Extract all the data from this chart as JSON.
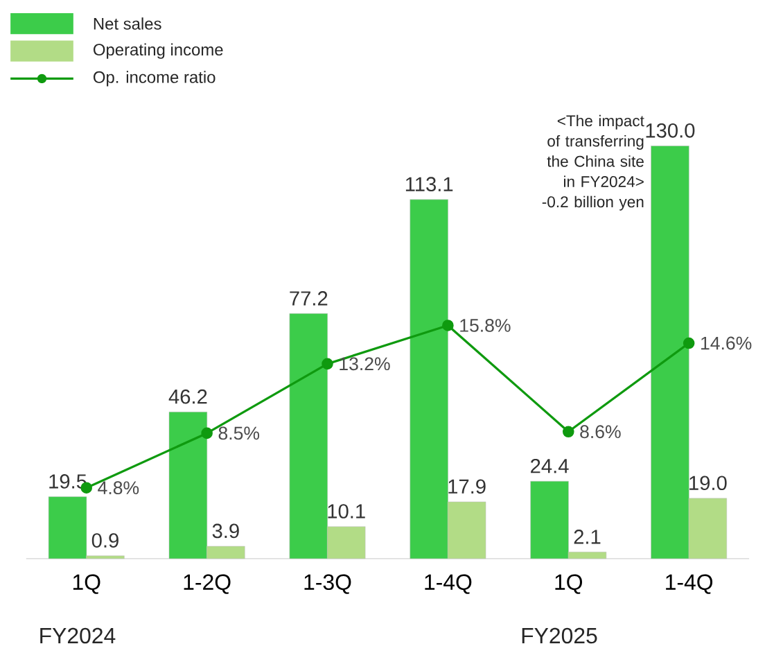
{
  "chart_data": {
    "type": "bar",
    "categories": [
      "1Q",
      "1-2Q",
      "1-3Q",
      "1-4Q",
      "1Q",
      "1-4Q"
    ],
    "series": [
      {
        "name": "Net sales",
        "color": "#3ccc4a",
        "values": [
          19.5,
          46.2,
          77.2,
          113.1,
          24.4,
          130.0
        ],
        "value_labels": [
          "19.5",
          "46.2",
          "77.2",
          "113.1",
          "24.4",
          "130.0"
        ]
      },
      {
        "name": "Operating income",
        "color": "#b2dc86",
        "values": [
          0.9,
          3.9,
          10.1,
          17.9,
          2.1,
          19.0
        ],
        "value_labels": [
          "0.9",
          "3.9",
          "10.1",
          "17.9",
          "2.1",
          "19.0"
        ]
      },
      {
        "name": "Op. income ratio",
        "type": "line",
        "axis": "y2",
        "color": "#0f9a0f",
        "marker": "circle",
        "line_style": "solid",
        "values": [
          4.8,
          8.5,
          13.2,
          15.8,
          8.6,
          14.6
        ],
        "value_labels": [
          "4.8%",
          "8.5%",
          "13.2%",
          "15.8%",
          "8.6%",
          "14.6%"
        ]
      }
    ],
    "annotations": [
      "FY2024",
      "FY2025",
      "<The impact of transferring the China site in FY2024>",
      "-0.2 billion yen"
    ],
    "legend": "top left",
    "grid": false
  }
}
